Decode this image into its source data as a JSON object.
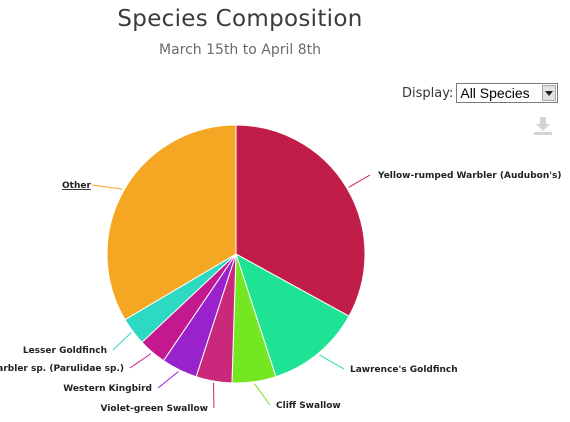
{
  "header": {
    "title": "Species Composition",
    "subtitle": "March 15th to April 8th"
  },
  "display": {
    "label": "Display:",
    "selected": "All Species"
  },
  "icons": {
    "download": "download-icon",
    "dropdown": "chevron-down-icon"
  },
  "chart_data": {
    "type": "pie",
    "title": "Species Composition",
    "subtitle": "March 15th to April 8th",
    "slices": [
      {
        "label": "Yellow-rumped Warbler (Audubon's)",
        "value": 33.0,
        "color": "#c01e48",
        "underline": false
      },
      {
        "label": "Lawrence's Goldfinch",
        "value": 12.0,
        "color": "#1fe394",
        "underline": false
      },
      {
        "label": "Cliff Swallow",
        "value": 5.5,
        "color": "#73e822",
        "underline": false
      },
      {
        "label": "Violet-green Swallow",
        "value": 4.5,
        "color": "#c9287b",
        "underline": false
      },
      {
        "label": "Western Kingbird",
        "value": 4.5,
        "color": "#9a22cc",
        "underline": false
      },
      {
        "label": "warbler sp. (Parulidae sp.)",
        "value": 3.5,
        "color": "#c4198e",
        "underline": false
      },
      {
        "label": "Lesser Goldfinch",
        "value": 3.5,
        "color": "#2ed9c4",
        "underline": false
      },
      {
        "label": "Other",
        "value": 33.5,
        "color": "#f5a623",
        "underline": true
      }
    ]
  }
}
